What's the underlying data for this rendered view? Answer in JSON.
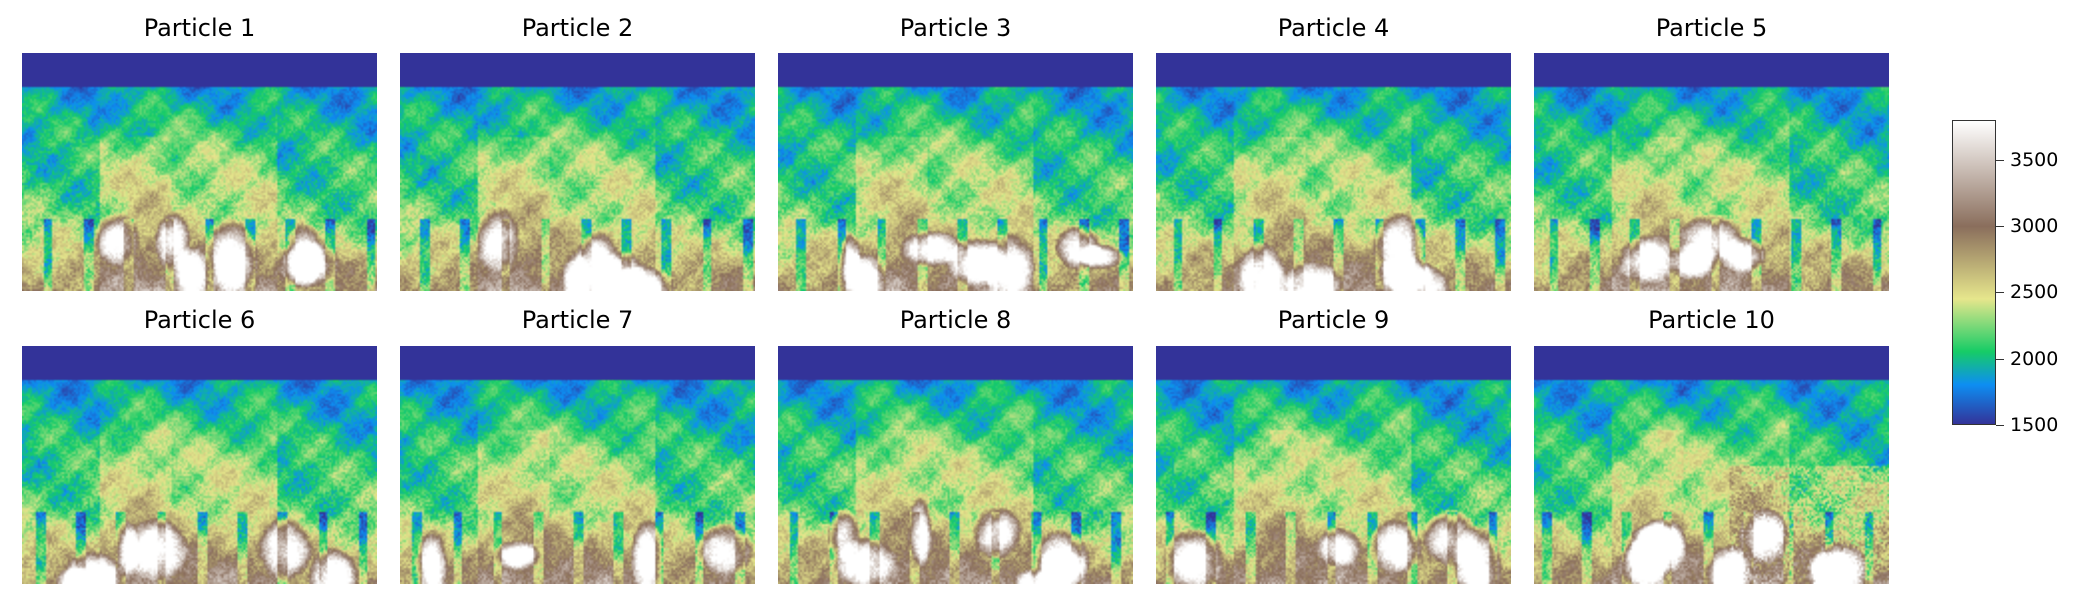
{
  "chart_data": {
    "type": "heatmap",
    "panels": [
      {
        "title": "Particle 1"
      },
      {
        "title": "Particle 2"
      },
      {
        "title": "Particle 3"
      },
      {
        "title": "Particle 4"
      },
      {
        "title": "Particle 5"
      },
      {
        "title": "Particle 6"
      },
      {
        "title": "Particle 7"
      },
      {
        "title": "Particle 8"
      },
      {
        "title": "Particle 9"
      },
      {
        "title": "Particle 10"
      }
    ],
    "grid": {
      "rows": 2,
      "cols": 5
    },
    "colorbar": {
      "range": [
        1500,
        3800
      ],
      "ticks": [
        1500,
        2000,
        2500,
        3000,
        3500
      ],
      "tick_labels": [
        "1500",
        "2000",
        "2500",
        "3000",
        "3500"
      ],
      "colormap_stops": [
        {
          "value": 1500,
          "color": "#333399"
        },
        {
          "value": 1800,
          "color": "#0d8ef2"
        },
        {
          "value": 2050,
          "color": "#16cc66"
        },
        {
          "value": 2450,
          "color": "#e6e68c"
        },
        {
          "value": 3000,
          "color": "#8a6e5c"
        },
        {
          "value": 3800,
          "color": "#ffffff"
        }
      ]
    },
    "axes_visible": false
  }
}
